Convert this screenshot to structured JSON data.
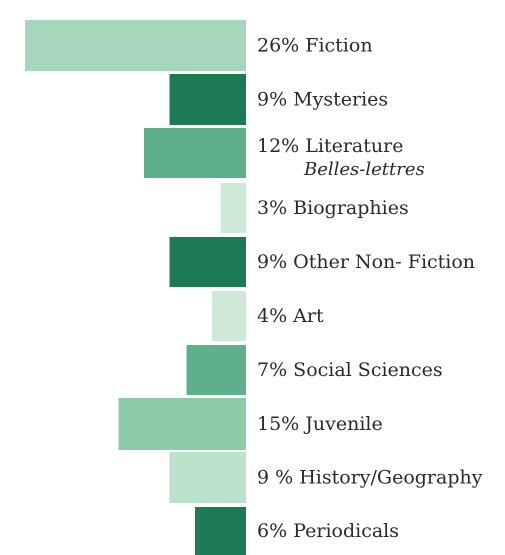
{
  "chart_data": {
    "type": "bar",
    "orientation": "horizontal",
    "bar_alignment": "right",
    "categories": [
      "Fiction",
      "Mysteries",
      "Literature",
      "Biographies",
      "Other Non- Fiction",
      "Art",
      "Social Sciences",
      "Juvenile",
      "History/Geography",
      "Periodicals"
    ],
    "values": [
      26,
      9,
      12,
      3,
      9,
      4,
      7,
      15,
      9,
      6
    ],
    "labels": [
      "26% Fiction",
      "9% Mysteries",
      "12% Literature",
      "3% Biographies",
      "9% Other Non- Fiction",
      "4% Art",
      "7% Social Sciences",
      "15% Juvenile",
      "9 % History/Geography",
      "6% Periodicals"
    ],
    "sublabels": [
      "",
      "",
      "Belles-lettres",
      "",
      "",
      "",
      "",
      "",
      "",
      ""
    ],
    "shades": [
      "light",
      "dark",
      "medium",
      "pale",
      "dark",
      "pale",
      "medium",
      "medium-light",
      "pale-light",
      "dark"
    ],
    "colors": {
      "dark": "#1e7a55",
      "medium": "#5fae8c",
      "medium-light": "#8ccaa9",
      "light": "#a6d6bb",
      "pale-light": "#bde2cb",
      "pale": "#cfe9d8"
    },
    "title": "",
    "xlabel": "",
    "ylabel": "",
    "xlim": [
      0,
      26
    ],
    "grid": false,
    "legend": "none"
  }
}
